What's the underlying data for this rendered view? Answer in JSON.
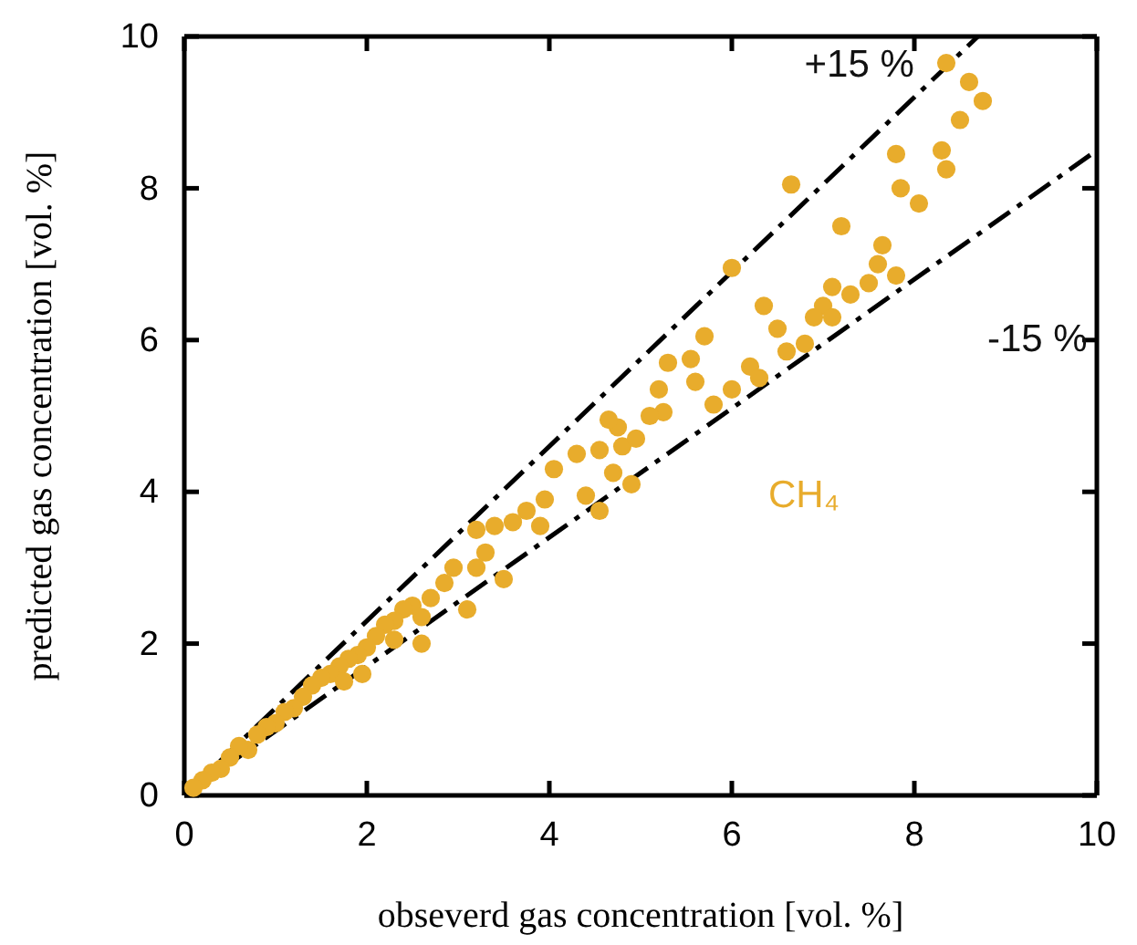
{
  "chart_data": {
    "type": "scatter",
    "xlabel": "obseverd gas concentration [vol. %]",
    "ylabel": "predicted gas concentration [vol. %]",
    "annotations": [
      "+15 %",
      "-15 %"
    ],
    "xlim": [
      0,
      10
    ],
    "ylim": [
      0,
      10
    ],
    "xticks": [
      0,
      2,
      4,
      6,
      8,
      10
    ],
    "yticks": [
      0,
      2,
      4,
      6,
      8,
      10
    ],
    "grid": false,
    "series": [
      {
        "type": "line",
        "color": "#000000",
        "line_style": "dashed",
        "x": [
          0,
          8.696
        ],
        "values": [
          0,
          10
        ]
      },
      {
        "type": "line",
        "color": "#000000",
        "line_style": "dashed",
        "x": [
          0,
          10
        ],
        "values": [
          0,
          8.5
        ]
      },
      {
        "name": "CH₄",
        "color": "#e8ac2c",
        "marker": "circle",
        "x": [
          8.35,
          8.6,
          8.75,
          8.5,
          8.3,
          8.35,
          7.8,
          7.85,
          8.05,
          6.65,
          6.0,
          7.2,
          7.65,
          7.8,
          7.6,
          7.5,
          7.1,
          7.0,
          7.1,
          7.3,
          6.9,
          6.5,
          6.8,
          6.6,
          6.0,
          6.2,
          6.3,
          5.7,
          5.55,
          5.6,
          5.3,
          5.2,
          5.25,
          4.75,
          4.65,
          4.8,
          4.55,
          4.3,
          4.7,
          4.4,
          4.9,
          4.55,
          4.05,
          3.95,
          3.75,
          3.9,
          3.6,
          3.4,
          3.2,
          3.5,
          3.2,
          3.1,
          2.95,
          2.85,
          2.7,
          2.6,
          2.6,
          2.5,
          2.4,
          2.3,
          2.2,
          2.1,
          2.0,
          1.95,
          1.9,
          1.8,
          1.7,
          1.6,
          1.5,
          1.4,
          1.3,
          1.2,
          1.1,
          1.0,
          0.9,
          0.8,
          0.7,
          0.6,
          0.5,
          0.4,
          0.3,
          0.2,
          0.1,
          5.1,
          4.95,
          5.8,
          6.35,
          2.3,
          1.75,
          3.3
        ],
        "values": [
          9.65,
          9.4,
          9.15,
          8.9,
          8.5,
          8.25,
          8.45,
          8.0,
          7.8,
          8.05,
          6.95,
          7.5,
          7.25,
          6.85,
          7.0,
          6.75,
          6.7,
          6.45,
          6.3,
          6.6,
          6.3,
          6.15,
          5.95,
          5.85,
          5.35,
          5.65,
          5.5,
          6.05,
          5.75,
          5.45,
          5.7,
          5.35,
          5.05,
          4.85,
          4.95,
          4.6,
          4.55,
          4.5,
          4.25,
          3.95,
          4.1,
          3.75,
          4.3,
          3.9,
          3.75,
          3.55,
          3.6,
          3.55,
          3.5,
          2.85,
          3.0,
          2.45,
          3.0,
          2.8,
          2.6,
          2.35,
          2.0,
          2.5,
          2.45,
          2.3,
          2.25,
          2.1,
          1.95,
          1.6,
          1.85,
          1.8,
          1.7,
          1.6,
          1.55,
          1.45,
          1.3,
          1.15,
          1.1,
          0.95,
          0.9,
          0.8,
          0.6,
          0.65,
          0.5,
          0.35,
          0.3,
          0.2,
          0.1,
          5.0,
          4.7,
          5.15,
          6.45,
          2.05,
          1.5,
          3.2
        ]
      }
    ]
  }
}
